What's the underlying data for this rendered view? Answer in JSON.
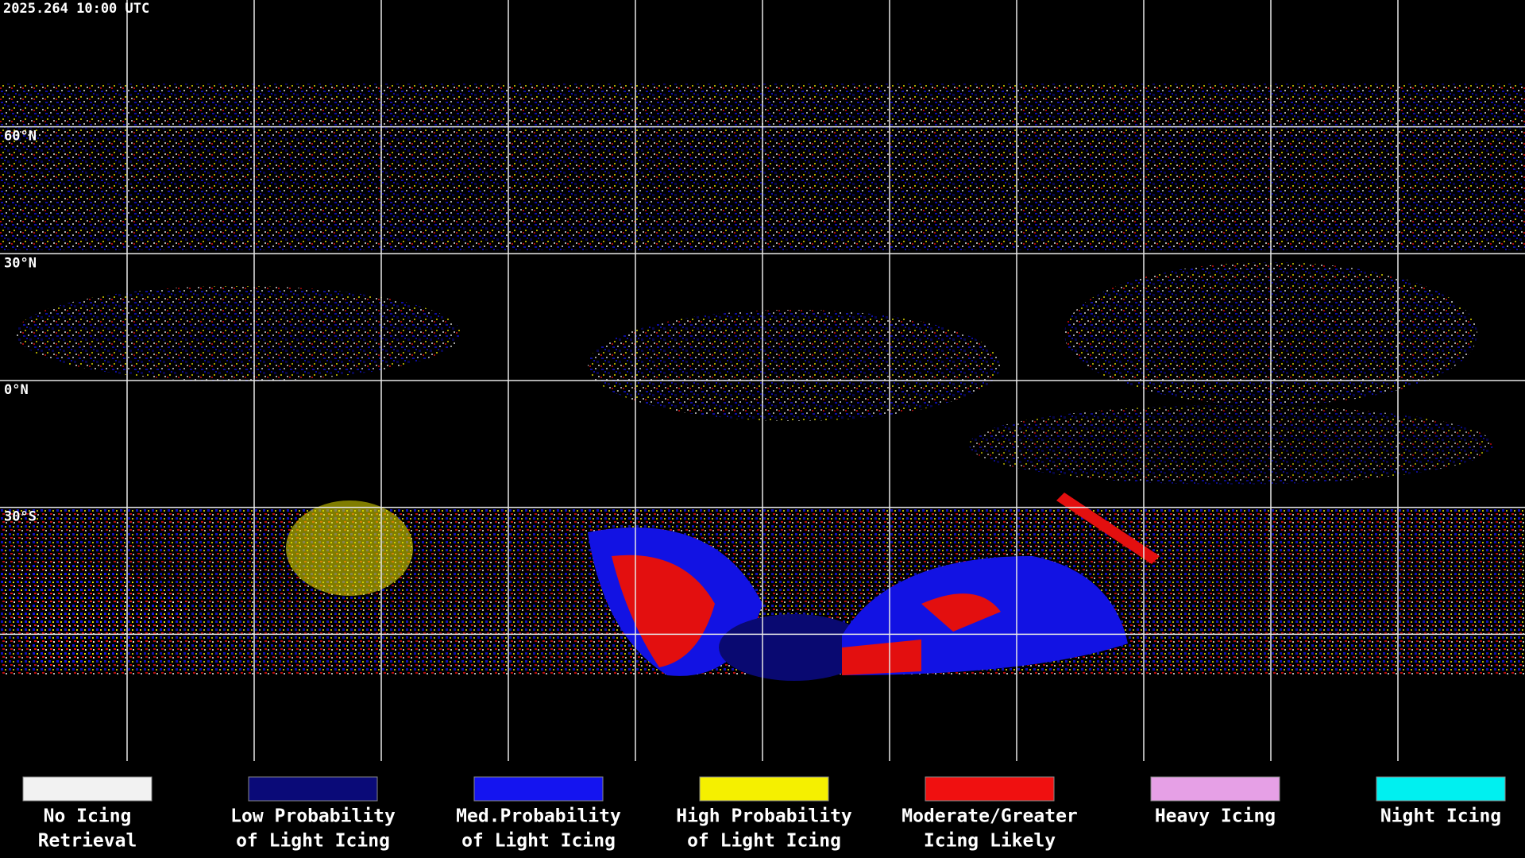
{
  "header": {
    "timestamp": "2025.264 10:00 UTC"
  },
  "map": {
    "latitude_labels": [
      "60°N",
      "30°N",
      "0°N",
      "30°S"
    ]
  },
  "legend": {
    "items": [
      {
        "label_lines": [
          "No Icing",
          "Retrieval"
        ],
        "color": "#f2f2f2"
      },
      {
        "label_lines": [
          "Low Probability",
          "of Light Icing"
        ],
        "color": "#0a0a78"
      },
      {
        "label_lines": [
          "Med.Probability",
          "of Light Icing"
        ],
        "color": "#1414f0"
      },
      {
        "label_lines": [
          "High Probability",
          "of Light Icing"
        ],
        "color": "#f5f000"
      },
      {
        "label_lines": [
          "Moderate/Greater",
          "Icing Likely"
        ],
        "color": "#f01010"
      },
      {
        "label_lines": [
          "Heavy Icing"
        ],
        "color": "#e6a0e6"
      },
      {
        "label_lines": [
          "Night Icing"
        ],
        "color": "#00f0f0"
      }
    ]
  }
}
